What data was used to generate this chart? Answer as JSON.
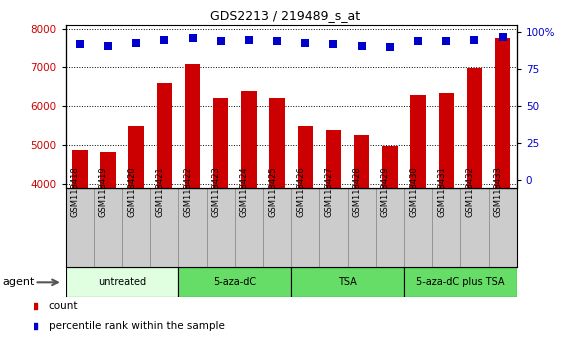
{
  "title": "GDS2213 / 219489_s_at",
  "samples": [
    "GSM118418",
    "GSM118419",
    "GSM118420",
    "GSM118421",
    "GSM118422",
    "GSM118423",
    "GSM118424",
    "GSM118425",
    "GSM118426",
    "GSM118427",
    "GSM118428",
    "GSM118429",
    "GSM118430",
    "GSM118431",
    "GSM118432",
    "GSM118433"
  ],
  "counts": [
    4870,
    4810,
    5480,
    6590,
    7100,
    6220,
    6400,
    6200,
    5500,
    5380,
    5250,
    4980,
    6300,
    6330,
    6990,
    7750
  ],
  "percentile_ranks": [
    92,
    91,
    93,
    95,
    96,
    94,
    95,
    94,
    93,
    92,
    91,
    90,
    94,
    94,
    95,
    97
  ],
  "bar_color": "#cc0000",
  "dot_color": "#0000cc",
  "ylim_left": [
    3900,
    8100
  ],
  "ylim_right": [
    -4.88,
    105
  ],
  "yticks_left": [
    4000,
    5000,
    6000,
    7000,
    8000
  ],
  "yticks_right": [
    0,
    25,
    50,
    75,
    100
  ],
  "groups": [
    {
      "label": "untreated",
      "start": 0,
      "end": 4,
      "color": "#e0ffe0"
    },
    {
      "label": "5-aza-dC",
      "start": 4,
      "end": 8,
      "color": "#66dd66"
    },
    {
      "label": "TSA",
      "start": 8,
      "end": 12,
      "color": "#66dd66"
    },
    {
      "label": "5-aza-dC plus TSA",
      "start": 12,
      "end": 16,
      "color": "#66dd66"
    }
  ],
  "legend_count_label": "count",
  "legend_pct_label": "percentile rank within the sample",
  "agent_label": "agent",
  "bg_color": "#ffffff",
  "plot_bg_color": "#ffffff",
  "tick_label_color_left": "#cc0000",
  "tick_label_color_right": "#0000cc",
  "dot_size": 28,
  "bar_width": 0.55,
  "label_box_color": "#cccccc",
  "label_box_edge": "#888888"
}
